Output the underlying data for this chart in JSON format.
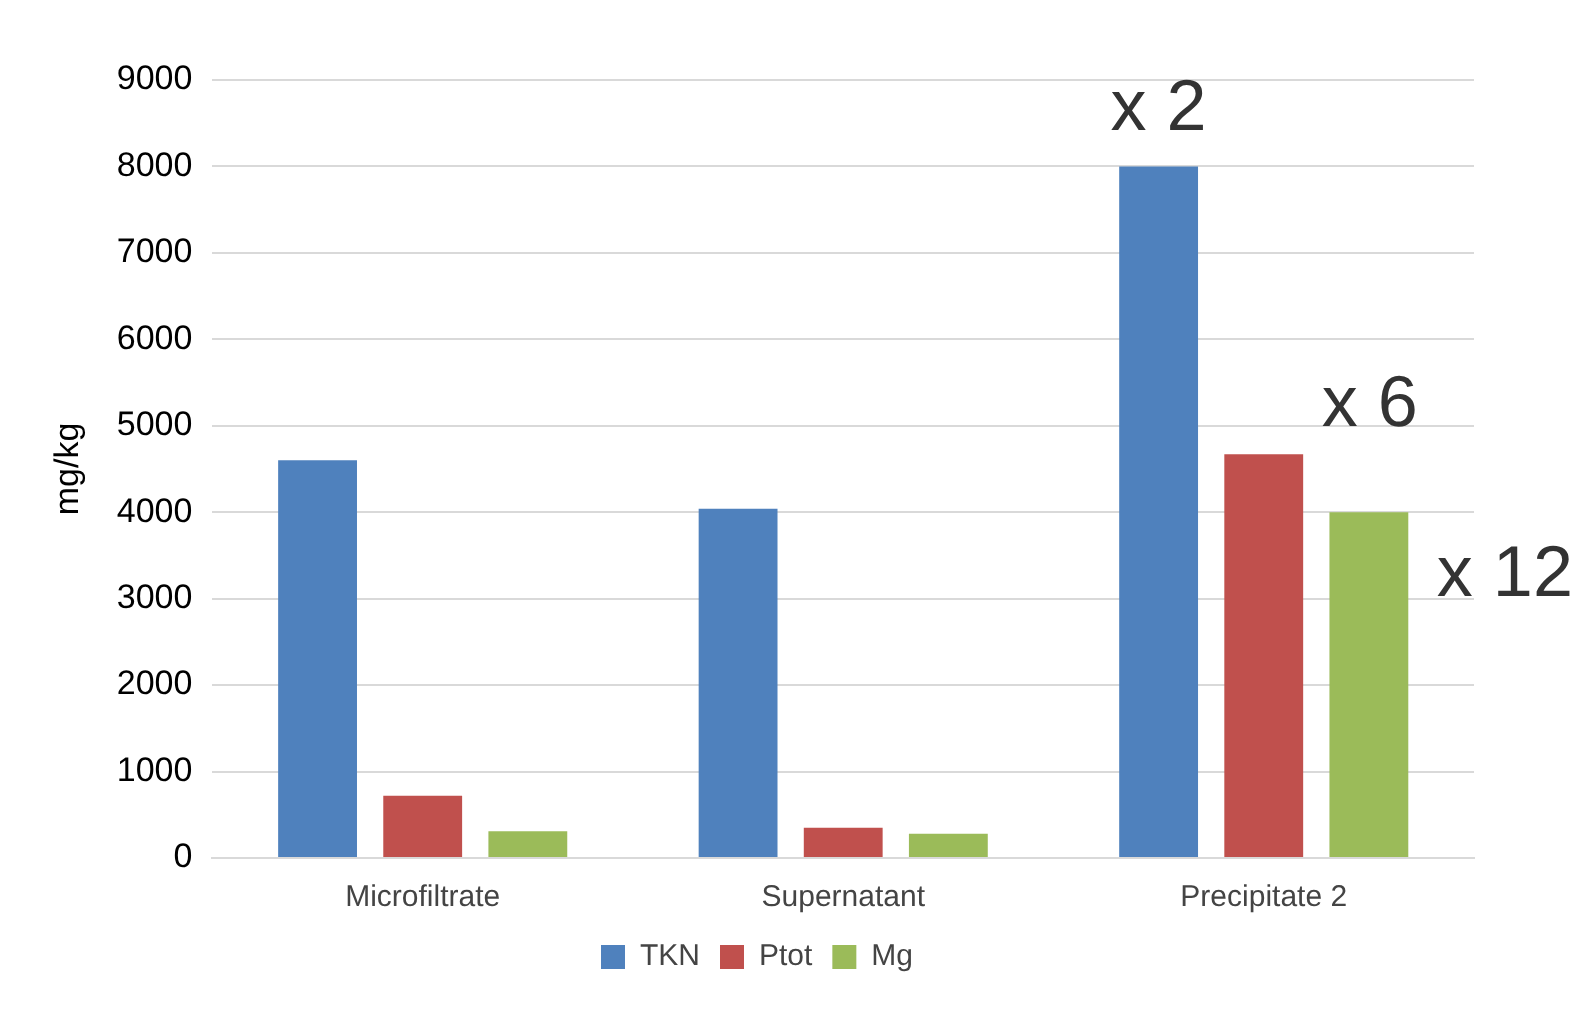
{
  "chart_data": {
    "type": "bar",
    "ylabel": "mg/kg",
    "categories": [
      "Microfiltrate",
      "Supernatant",
      "Precipitate 2"
    ],
    "series": [
      {
        "name": "TKN",
        "color": "#4f81bd",
        "values": [
          4600,
          4040,
          8000
        ]
      },
      {
        "name": "Ptot",
        "color": "#c0504d",
        "values": [
          720,
          350,
          4670
        ]
      },
      {
        "name": "Mg",
        "color": "#9bbb59",
        "values": [
          310,
          280,
          4000
        ]
      }
    ],
    "ylim": [
      0,
      9000
    ],
    "yticks": [
      0,
      1000,
      2000,
      3000,
      4000,
      5000,
      6000,
      7000,
      8000,
      9000
    ],
    "grid": "y",
    "legend": "bottom",
    "annotations": [
      "x 2",
      "x 6",
      "x 12"
    ]
  }
}
